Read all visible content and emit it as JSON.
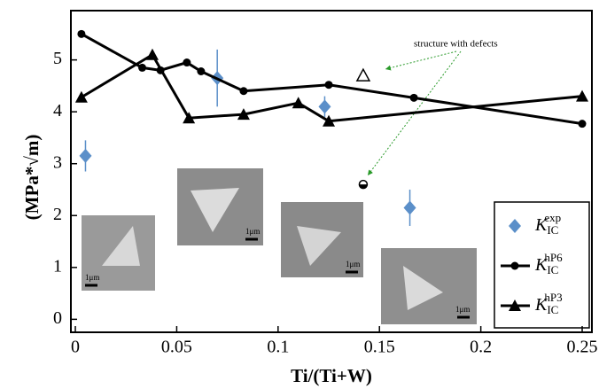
{
  "chart_data": {
    "type": "scatter",
    "x_label": "Ti/(Ti+W)",
    "y_label": "(MPa*√m)",
    "xlim": [
      -0.0022,
      0.2548
    ],
    "ylim": [
      -0.25,
      5.95
    ],
    "xticks": [
      0,
      0.05,
      0.1,
      0.15,
      0.2,
      0.25
    ],
    "yticks": [
      0,
      1,
      2,
      3,
      4,
      5
    ],
    "series": [
      {
        "name": "K",
        "subscript": "IC",
        "superscript": "exp",
        "color": "#5b8fc9",
        "marker": "diamond",
        "line": false,
        "x": [
          0.005,
          0.07,
          0.123,
          0.165
        ],
        "values": [
          3.15,
          4.65,
          4.1,
          2.15
        ],
        "errors": [
          0.3,
          0.55,
          0.2,
          0.35
        ]
      },
      {
        "name": "K",
        "subscript": "IC",
        "superscript": "hP6",
        "color": "#000000",
        "marker": "circle",
        "line": true,
        "x": [
          0.003,
          0.033,
          0.042,
          0.055,
          0.062,
          0.083,
          0.125,
          0.167,
          0.25
        ],
        "values": [
          5.5,
          4.85,
          4.8,
          4.95,
          4.78,
          4.4,
          4.52,
          4.27,
          3.77
        ]
      },
      {
        "name": "K",
        "subscript": "IC",
        "superscript": "hP3",
        "color": "#000000",
        "marker": "triangle",
        "line": true,
        "x": [
          0.003,
          0.038,
          0.056,
          0.083,
          0.11,
          0.125,
          0.25
        ],
        "values": [
          4.28,
          5.1,
          3.88,
          3.95,
          4.17,
          3.82,
          4.3
        ]
      }
    ],
    "defect_points": {
      "x": [
        0.142,
        0.142
      ],
      "values": [
        4.7,
        2.6
      ]
    },
    "annotation": "structure with defects",
    "inset_labels": [
      "1μm",
      "1μm",
      "1μm",
      "1μm"
    ]
  }
}
